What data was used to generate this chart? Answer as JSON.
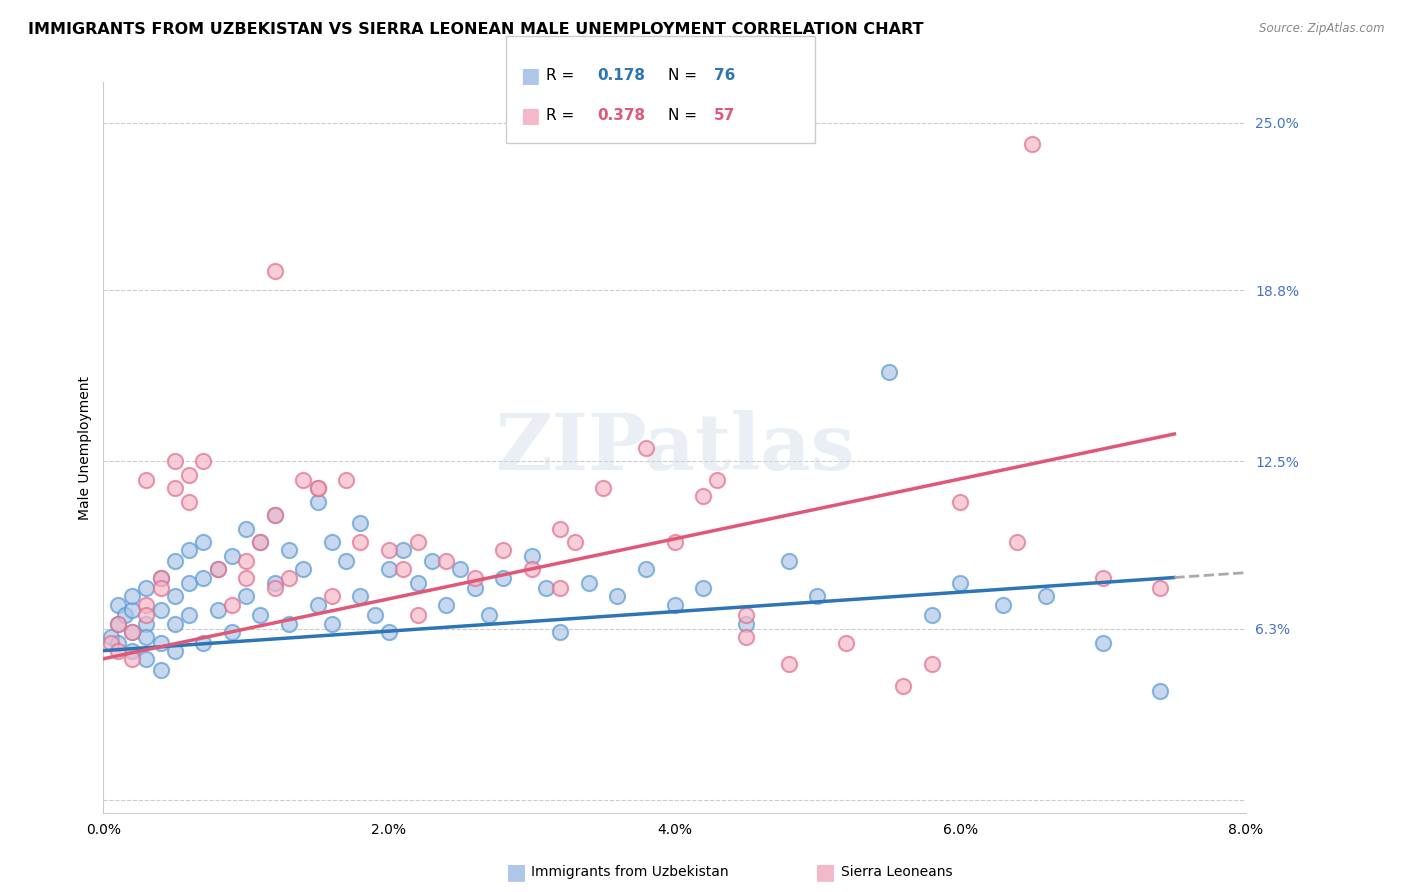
{
  "title": "IMMIGRANTS FROM UZBEKISTAN VS SIERRA LEONEAN MALE UNEMPLOYMENT CORRELATION CHART",
  "source": "Source: ZipAtlas.com",
  "ylabel": "Male Unemployment",
  "legend_label1": "Immigrants from Uzbekistan",
  "legend_label2": "Sierra Leoneans",
  "r1": 0.178,
  "n1": 76,
  "r2": 0.378,
  "n2": 57,
  "xmin": 0.0,
  "xmax": 0.08,
  "ymin": -0.005,
  "ymax": 0.265,
  "ytick_vals": [
    0.0,
    0.063,
    0.125,
    0.188,
    0.25
  ],
  "ytick_labels": [
    "",
    "6.3%",
    "12.5%",
    "18.8%",
    "25.0%"
  ],
  "xtick_vals": [
    0.0,
    0.02,
    0.04,
    0.06,
    0.08
  ],
  "xtick_labels": [
    "0.0%",
    "2.0%",
    "4.0%",
    "6.0%",
    "8.0%"
  ],
  "color_blue_fill": "#aec6e8",
  "color_blue_edge": "#5b9bd5",
  "color_pink_fill": "#f4b8c8",
  "color_pink_edge": "#e07090",
  "color_blue_line": "#2e75b6",
  "color_pink_line": "#e05878",
  "color_gray_dash": "#aaaaaa",
  "watermark": "ZIPatlas",
  "blue_points_x": [
    0.0005,
    0.001,
    0.001,
    0.001,
    0.0015,
    0.002,
    0.002,
    0.002,
    0.002,
    0.003,
    0.003,
    0.003,
    0.003,
    0.004,
    0.004,
    0.004,
    0.004,
    0.005,
    0.005,
    0.005,
    0.005,
    0.006,
    0.006,
    0.006,
    0.007,
    0.007,
    0.007,
    0.008,
    0.008,
    0.009,
    0.009,
    0.01,
    0.01,
    0.011,
    0.011,
    0.012,
    0.012,
    0.013,
    0.013,
    0.014,
    0.015,
    0.015,
    0.016,
    0.016,
    0.017,
    0.018,
    0.018,
    0.019,
    0.02,
    0.02,
    0.021,
    0.022,
    0.023,
    0.024,
    0.025,
    0.026,
    0.027,
    0.028,
    0.03,
    0.031,
    0.032,
    0.034,
    0.036,
    0.038,
    0.04,
    0.042,
    0.045,
    0.048,
    0.05,
    0.055,
    0.058,
    0.06,
    0.063,
    0.066,
    0.07,
    0.074
  ],
  "blue_points_y": [
    0.06,
    0.065,
    0.058,
    0.072,
    0.068,
    0.07,
    0.062,
    0.075,
    0.055,
    0.078,
    0.065,
    0.06,
    0.052,
    0.082,
    0.07,
    0.058,
    0.048,
    0.088,
    0.075,
    0.065,
    0.055,
    0.092,
    0.08,
    0.068,
    0.095,
    0.082,
    0.058,
    0.085,
    0.07,
    0.09,
    0.062,
    0.1,
    0.075,
    0.095,
    0.068,
    0.105,
    0.08,
    0.092,
    0.065,
    0.085,
    0.11,
    0.072,
    0.095,
    0.065,
    0.088,
    0.102,
    0.075,
    0.068,
    0.085,
    0.062,
    0.092,
    0.08,
    0.088,
    0.072,
    0.085,
    0.078,
    0.068,
    0.082,
    0.09,
    0.078,
    0.062,
    0.08,
    0.075,
    0.085,
    0.072,
    0.078,
    0.065,
    0.088,
    0.075,
    0.158,
    0.068,
    0.08,
    0.072,
    0.075,
    0.058,
    0.04
  ],
  "pink_points_x": [
    0.0005,
    0.001,
    0.001,
    0.002,
    0.002,
    0.003,
    0.003,
    0.003,
    0.004,
    0.004,
    0.005,
    0.005,
    0.006,
    0.006,
    0.007,
    0.008,
    0.009,
    0.01,
    0.01,
    0.011,
    0.012,
    0.012,
    0.013,
    0.014,
    0.015,
    0.016,
    0.017,
    0.018,
    0.02,
    0.021,
    0.022,
    0.024,
    0.026,
    0.028,
    0.03,
    0.032,
    0.033,
    0.035,
    0.038,
    0.04,
    0.042,
    0.043,
    0.045,
    0.048,
    0.052,
    0.056,
    0.06,
    0.064,
    0.065,
    0.07,
    0.012,
    0.015,
    0.022,
    0.032,
    0.045,
    0.058,
    0.074
  ],
  "pink_points_y": [
    0.058,
    0.065,
    0.055,
    0.062,
    0.052,
    0.072,
    0.068,
    0.118,
    0.082,
    0.078,
    0.125,
    0.115,
    0.12,
    0.11,
    0.125,
    0.085,
    0.072,
    0.088,
    0.082,
    0.095,
    0.105,
    0.078,
    0.082,
    0.118,
    0.115,
    0.075,
    0.118,
    0.095,
    0.092,
    0.085,
    0.095,
    0.088,
    0.082,
    0.092,
    0.085,
    0.1,
    0.095,
    0.115,
    0.13,
    0.095,
    0.112,
    0.118,
    0.068,
    0.05,
    0.058,
    0.042,
    0.11,
    0.095,
    0.242,
    0.082,
    0.195,
    0.115,
    0.068,
    0.078,
    0.06,
    0.05,
    0.078
  ],
  "title_fontsize": 11.5,
  "axis_label_fontsize": 10,
  "tick_fontsize": 10,
  "legend_fontsize": 11
}
